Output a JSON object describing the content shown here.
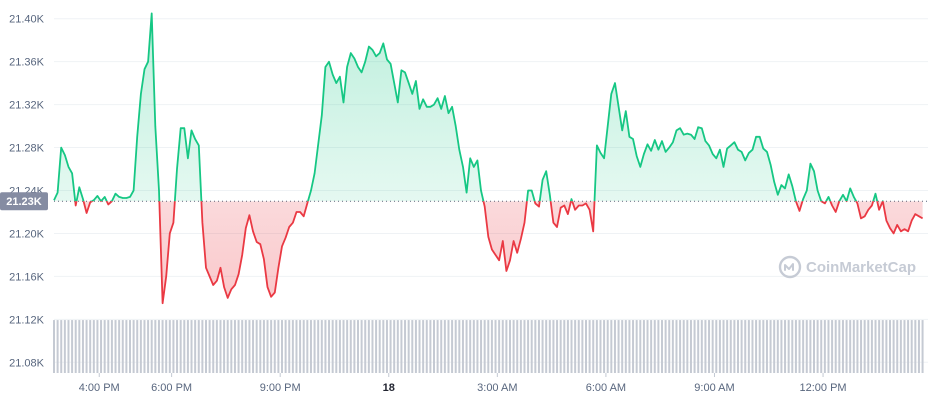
{
  "chart_data": {
    "type": "area",
    "baseline_value": 21230,
    "baseline_label": "21.23K",
    "ylim": [
      21070,
      21410
    ],
    "y_ticks": [
      21080,
      21120,
      21160,
      21200,
      21240,
      21280,
      21320,
      21360,
      21400
    ],
    "y_tick_labels": [
      "21.08K",
      "21.12K",
      "21.16K",
      "21.20K",
      "21.24K",
      "21.28K",
      "21.32K",
      "21.36K",
      "21.40K"
    ],
    "x_ticks": [
      {
        "t": 16.0,
        "label": "4:00 PM",
        "bold": false
      },
      {
        "t": 18.0,
        "label": "6:00 PM",
        "bold": false
      },
      {
        "t": 21.0,
        "label": "9:00 PM",
        "bold": false
      },
      {
        "t": 24.0,
        "label": "18",
        "bold": true
      },
      {
        "t": 27.0,
        "label": "3:00 AM",
        "bold": false
      },
      {
        "t": 30.0,
        "label": "6:00 AM",
        "bold": false
      },
      {
        "t": 33.0,
        "label": "9:00 AM",
        "bold": false
      },
      {
        "t": 36.0,
        "label": "12:00 PM",
        "bold": false
      }
    ],
    "x_range": [
      14.75,
      38.9
    ],
    "up_color": "#16c784",
    "down_color": "#ea3943",
    "volume_color": "#c5cad3",
    "volume_max": 100,
    "price": [
      [
        14.75,
        21231
      ],
      [
        14.85,
        21238
      ],
      [
        14.95,
        21280
      ],
      [
        15.05,
        21273
      ],
      [
        15.15,
        21262
      ],
      [
        15.25,
        21256
      ],
      [
        15.35,
        21226
      ],
      [
        15.45,
        21243
      ],
      [
        15.55,
        21232
      ],
      [
        15.65,
        21219
      ],
      [
        15.75,
        21229
      ],
      [
        15.85,
        21231
      ],
      [
        15.95,
        21235
      ],
      [
        16.05,
        21230
      ],
      [
        16.15,
        21234
      ],
      [
        16.25,
        21227
      ],
      [
        16.35,
        21230
      ],
      [
        16.45,
        21237
      ],
      [
        16.55,
        21234
      ],
      [
        16.65,
        21233
      ],
      [
        16.75,
        21233
      ],
      [
        16.85,
        21234
      ],
      [
        16.95,
        21240
      ],
      [
        17.05,
        21290
      ],
      [
        17.15,
        21330
      ],
      [
        17.25,
        21353
      ],
      [
        17.35,
        21360
      ],
      [
        17.45,
        21405
      ],
      [
        17.55,
        21300
      ],
      [
        17.65,
        21240
      ],
      [
        17.75,
        21135
      ],
      [
        17.85,
        21160
      ],
      [
        17.95,
        21200
      ],
      [
        18.05,
        21210
      ],
      [
        18.15,
        21260
      ],
      [
        18.25,
        21298
      ],
      [
        18.35,
        21298
      ],
      [
        18.45,
        21270
      ],
      [
        18.55,
        21296
      ],
      [
        18.65,
        21288
      ],
      [
        18.75,
        21282
      ],
      [
        18.85,
        21210
      ],
      [
        18.95,
        21168
      ],
      [
        19.05,
        21160
      ],
      [
        19.15,
        21152
      ],
      [
        19.25,
        21156
      ],
      [
        19.35,
        21168
      ],
      [
        19.45,
        21150
      ],
      [
        19.55,
        21140
      ],
      [
        19.65,
        21148
      ],
      [
        19.75,
        21152
      ],
      [
        19.85,
        21162
      ],
      [
        19.95,
        21180
      ],
      [
        20.05,
        21205
      ],
      [
        20.15,
        21217
      ],
      [
        20.25,
        21202
      ],
      [
        20.35,
        21192
      ],
      [
        20.45,
        21190
      ],
      [
        20.55,
        21176
      ],
      [
        20.65,
        21150
      ],
      [
        20.75,
        21141
      ],
      [
        20.85,
        21145
      ],
      [
        20.95,
        21168
      ],
      [
        21.05,
        21188
      ],
      [
        21.15,
        21196
      ],
      [
        21.25,
        21206
      ],
      [
        21.35,
        21210
      ],
      [
        21.45,
        21220
      ],
      [
        21.55,
        21220
      ],
      [
        21.65,
        21216
      ],
      [
        21.75,
        21228
      ],
      [
        21.85,
        21240
      ],
      [
        21.95,
        21256
      ],
      [
        22.05,
        21283
      ],
      [
        22.15,
        21310
      ],
      [
        22.25,
        21355
      ],
      [
        22.35,
        21360
      ],
      [
        22.45,
        21348
      ],
      [
        22.55,
        21340
      ],
      [
        22.65,
        21346
      ],
      [
        22.75,
        21322
      ],
      [
        22.85,
        21355
      ],
      [
        22.95,
        21368
      ],
      [
        23.05,
        21363
      ],
      [
        23.15,
        21355
      ],
      [
        23.25,
        21350
      ],
      [
        23.35,
        21360
      ],
      [
        23.45,
        21374
      ],
      [
        23.55,
        21371
      ],
      [
        23.65,
        21365
      ],
      [
        23.75,
        21368
      ],
      [
        23.85,
        21377
      ],
      [
        23.95,
        21362
      ],
      [
        24.05,
        21358
      ],
      [
        24.15,
        21340
      ],
      [
        24.25,
        21322
      ],
      [
        24.35,
        21352
      ],
      [
        24.45,
        21350
      ],
      [
        24.55,
        21340
      ],
      [
        24.65,
        21330
      ],
      [
        24.75,
        21342
      ],
      [
        24.85,
        21316
      ],
      [
        24.95,
        21325
      ],
      [
        25.05,
        21318
      ],
      [
        25.15,
        21318
      ],
      [
        25.25,
        21320
      ],
      [
        25.35,
        21326
      ],
      [
        25.45,
        21316
      ],
      [
        25.55,
        21328
      ],
      [
        25.65,
        21312
      ],
      [
        25.75,
        21318
      ],
      [
        25.85,
        21300
      ],
      [
        25.95,
        21278
      ],
      [
        26.05,
        21262
      ],
      [
        26.15,
        21238
      ],
      [
        26.25,
        21270
      ],
      [
        26.35,
        21262
      ],
      [
        26.45,
        21268
      ],
      [
        26.55,
        21240
      ],
      [
        26.65,
        21225
      ],
      [
        26.75,
        21197
      ],
      [
        26.85,
        21185
      ],
      [
        26.95,
        21180
      ],
      [
        27.05,
        21175
      ],
      [
        27.15,
        21193
      ],
      [
        27.25,
        21165
      ],
      [
        27.35,
        21175
      ],
      [
        27.45,
        21193
      ],
      [
        27.55,
        21182
      ],
      [
        27.65,
        21195
      ],
      [
        27.75,
        21210
      ],
      [
        27.85,
        21240
      ],
      [
        27.95,
        21240
      ],
      [
        28.05,
        21228
      ],
      [
        28.15,
        21225
      ],
      [
        28.25,
        21250
      ],
      [
        28.35,
        21258
      ],
      [
        28.45,
        21236
      ],
      [
        28.55,
        21210
      ],
      [
        28.65,
        21206
      ],
      [
        28.75,
        21224
      ],
      [
        28.85,
        21226
      ],
      [
        28.95,
        21218
      ],
      [
        29.05,
        21232
      ],
      [
        29.15,
        21222
      ],
      [
        29.25,
        21226
      ],
      [
        29.35,
        21226
      ],
      [
        29.45,
        21228
      ],
      [
        29.55,
        21222
      ],
      [
        29.65,
        21202
      ],
      [
        29.75,
        21282
      ],
      [
        29.85,
        21275
      ],
      [
        29.95,
        21270
      ],
      [
        30.05,
        21300
      ],
      [
        30.15,
        21330
      ],
      [
        30.25,
        21340
      ],
      [
        30.35,
        21318
      ],
      [
        30.45,
        21296
      ],
      [
        30.55,
        21314
      ],
      [
        30.65,
        21290
      ],
      [
        30.75,
        21288
      ],
      [
        30.85,
        21272
      ],
      [
        30.95,
        21262
      ],
      [
        31.05,
        21274
      ],
      [
        31.15,
        21283
      ],
      [
        31.25,
        21277
      ],
      [
        31.35,
        21287
      ],
      [
        31.45,
        21278
      ],
      [
        31.55,
        21286
      ],
      [
        31.65,
        21276
      ],
      [
        31.75,
        21280
      ],
      [
        31.85,
        21285
      ],
      [
        31.95,
        21296
      ],
      [
        32.05,
        21298
      ],
      [
        32.15,
        21292
      ],
      [
        32.25,
        21293
      ],
      [
        32.35,
        21292
      ],
      [
        32.45,
        21288
      ],
      [
        32.55,
        21299
      ],
      [
        32.65,
        21298
      ],
      [
        32.75,
        21286
      ],
      [
        32.85,
        21282
      ],
      [
        32.95,
        21274
      ],
      [
        33.05,
        21270
      ],
      [
        33.15,
        21278
      ],
      [
        33.25,
        21262
      ],
      [
        33.35,
        21279
      ],
      [
        33.45,
        21282
      ],
      [
        33.55,
        21285
      ],
      [
        33.65,
        21278
      ],
      [
        33.75,
        21276
      ],
      [
        33.85,
        21268
      ],
      [
        33.95,
        21275
      ],
      [
        34.05,
        21278
      ],
      [
        34.15,
        21290
      ],
      [
        34.25,
        21290
      ],
      [
        34.35,
        21279
      ],
      [
        34.45,
        21276
      ],
      [
        34.55,
        21264
      ],
      [
        34.65,
        21248
      ],
      [
        34.75,
        21236
      ],
      [
        34.85,
        21245
      ],
      [
        34.95,
        21242
      ],
      [
        35.05,
        21255
      ],
      [
        35.15,
        21244
      ],
      [
        35.25,
        21230
      ],
      [
        35.35,
        21221
      ],
      [
        35.45,
        21232
      ],
      [
        35.55,
        21240
      ],
      [
        35.65,
        21265
      ],
      [
        35.75,
        21258
      ],
      [
        35.85,
        21240
      ],
      [
        35.95,
        21230
      ],
      [
        36.05,
        21228
      ],
      [
        36.15,
        21234
      ],
      [
        36.25,
        21226
      ],
      [
        36.35,
        21220
      ],
      [
        36.45,
        21230
      ],
      [
        36.55,
        21236
      ],
      [
        36.65,
        21230
      ],
      [
        36.75,
        21242
      ],
      [
        36.85,
        21234
      ],
      [
        36.95,
        21228
      ],
      [
        37.05,
        21214
      ],
      [
        37.15,
        21216
      ],
      [
        37.25,
        21222
      ],
      [
        37.35,
        21226
      ],
      [
        37.45,
        21237
      ],
      [
        37.55,
        21222
      ],
      [
        37.65,
        21230
      ],
      [
        37.75,
        21212
      ],
      [
        37.85,
        21205
      ],
      [
        37.95,
        21200
      ],
      [
        38.05,
        21208
      ],
      [
        38.15,
        21202
      ],
      [
        38.25,
        21204
      ],
      [
        38.35,
        21202
      ],
      [
        38.45,
        21212
      ],
      [
        38.55,
        21218
      ],
      [
        38.65,
        21216
      ],
      [
        38.75,
        21214
      ]
    ]
  },
  "watermark": {
    "text": "CoinMarketCap",
    "icon": "coinmarketcap-logo-icon"
  }
}
